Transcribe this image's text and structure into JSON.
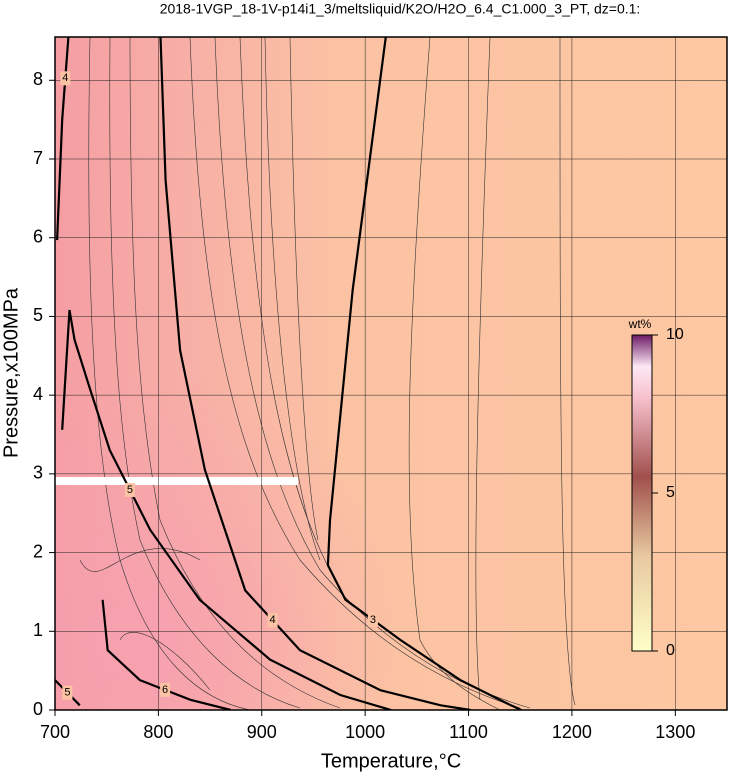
{
  "chart_data": {
    "type": "contour",
    "title": "2018-1VGP_18-1V-p14i1_3/meltsliquid/K2O/H2O_6.4_C1.000_3_PT, dz=0.1:",
    "x_label": "Temperature,°C",
    "y_label": "Pressure,x100MPa",
    "xlim": [
      700,
      1350
    ],
    "ylim": [
      0,
      8.55
    ],
    "xticks": [
      700,
      800,
      900,
      1000,
      1100,
      1200,
      1300
    ],
    "yticks": [
      0,
      1,
      2,
      3,
      4,
      5,
      6,
      7,
      8
    ],
    "grid": true,
    "contours": [
      {
        "level": 3,
        "x": [
          1020,
          988,
          966,
          964,
          981,
          1034,
          1092,
          1141,
          1151
        ],
        "y": [
          8.55,
          5.34,
          2.41,
          1.84,
          1.4,
          0.89,
          0.38,
          0.06,
          0
        ]
      },
      {
        "level": 4,
        "x": [
          802,
          807,
          821,
          845,
          884,
          937,
          1015,
          1073,
          1102
        ],
        "y": [
          8.55,
          6.73,
          4.57,
          3.05,
          1.52,
          0.76,
          0.25,
          0.06,
          0
        ]
      },
      {
        "level": 4,
        "x": [
          702,
          707,
          713
        ],
        "y": [
          5.97,
          7.5,
          8.55
        ]
      },
      {
        "level": 5,
        "x": [
          707,
          714,
          719,
          734,
          753,
          792,
          840,
          908,
          976,
          1025
        ],
        "y": [
          3.56,
          5.08,
          4.7,
          4.07,
          3.3,
          2.29,
          1.4,
          0.64,
          0.19,
          0
        ]
      },
      {
        "level": 5,
        "x": [
          700,
          724
        ],
        "y": [
          0.38,
          0.06
        ]
      },
      {
        "level": 6,
        "x": [
          746,
          751,
          782,
          831,
          870
        ],
        "y": [
          1.4,
          0.76,
          0.38,
          0.13,
          0
        ]
      }
    ],
    "colorbar": {
      "label": "wt%",
      "lim": [
        0,
        10
      ],
      "ticks": [
        0,
        5,
        10
      ]
    }
  }
}
